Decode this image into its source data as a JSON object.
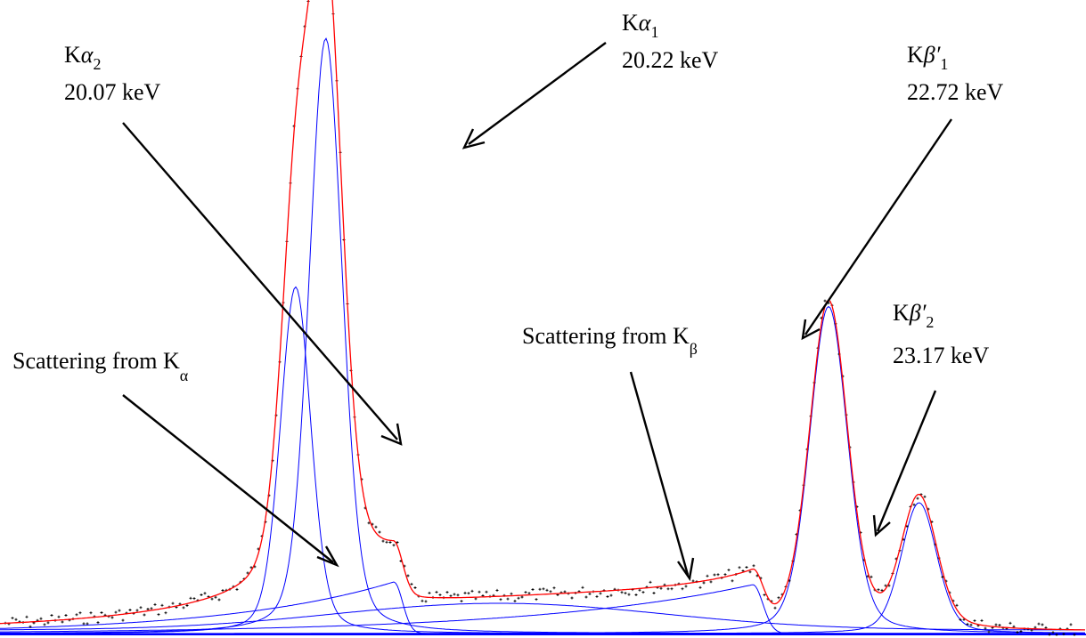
{
  "chart_data": {
    "type": "line",
    "x_unit": "keV",
    "grid": false,
    "axes_visible": false,
    "colors": {
      "fit_total": "#ff0000",
      "components": "#0000ff",
      "data_points": "#000000",
      "background": "#ffffff"
    },
    "peaks": [
      {
        "key": "ka2",
        "symbol": "α",
        "sub": "2",
        "energy_text": "20.07 keV",
        "energy": 20.07,
        "relative_height": 0.53
      },
      {
        "key": "ka1",
        "symbol": "α",
        "sub": "1",
        "energy_text": "20.22 keV",
        "energy": 20.22,
        "relative_height": 0.91
      },
      {
        "key": "kb1",
        "symbol": "β′",
        "sub": "1",
        "energy_text": "22.72 keV",
        "energy": 22.72,
        "relative_height": 0.5
      },
      {
        "key": "kb2",
        "symbol": "β′",
        "sub": "2",
        "energy_text": "23.17 keV",
        "energy": 23.17,
        "relative_height": 0.2
      }
    ],
    "annotations": [
      {
        "key": "scatter_a",
        "text": "Scattering from K",
        "sub": "α"
      },
      {
        "key": "scatter_b",
        "text": "Scattering from K",
        "sub": "β"
      }
    ],
    "k_letter": "K"
  }
}
